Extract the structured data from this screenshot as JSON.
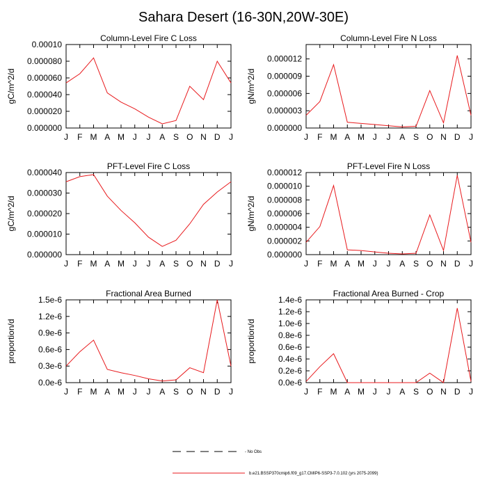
{
  "title": "Sahara Desert (16-30N,20W-30E)",
  "month_labels": [
    "J",
    "F",
    "M",
    "A",
    "M",
    "J",
    "J",
    "A",
    "S",
    "O",
    "N",
    "D",
    "J"
  ],
  "line_color": "#e8191c",
  "legend": {
    "obs_label": "- No Obs",
    "model_label": "b.e21.BSSP370cmip6.f09_g17.CMIP6-SSP3-7.0.102 (yrs 2075-2099)"
  },
  "chart_data": [
    {
      "type": "line",
      "title": "Column-Level Fire C Loss",
      "ylabel": "gC/m^2/d",
      "ylim": [
        0,
        0.0001
      ],
      "yticks": [
        0,
        2e-05,
        4e-05,
        6e-05,
        8e-05,
        0.0001
      ],
      "ytick_labels": [
        "0.000000",
        "0.000020",
        "0.000040",
        "0.000060",
        "0.000080",
        "0.00010"
      ],
      "categories": [
        "J",
        "F",
        "M",
        "A",
        "M",
        "J",
        "J",
        "A",
        "S",
        "O",
        "N",
        "D",
        "J"
      ],
      "values": [
        5.4e-05,
        6.5e-05,
        8.4e-05,
        4.2e-05,
        3.1e-05,
        2.3e-05,
        1.3e-05,
        5e-06,
        9e-06,
        5e-05,
        3.4e-05,
        8e-05,
        5.4e-05
      ]
    },
    {
      "type": "line",
      "title": "Column-Level Fire N Loss",
      "ylabel": "gN/m^2/d",
      "ylim": [
        0,
        1.45e-05
      ],
      "yticks": [
        0,
        3e-06,
        6e-06,
        9e-06,
        1.2e-05
      ],
      "ytick_labels": [
        "0.000000",
        "0.000003",
        "0.000006",
        "0.000009",
        "0.000012"
      ],
      "categories": [
        "J",
        "F",
        "M",
        "A",
        "M",
        "J",
        "J",
        "A",
        "S",
        "O",
        "N",
        "D",
        "J"
      ],
      "values": [
        2.2e-06,
        4.6e-06,
        1.1e-05,
        1e-06,
        8e-07,
        6e-07,
        4e-07,
        2e-07,
        3e-07,
        6.5e-06,
        9e-07,
        1.26e-05,
        2.2e-06
      ]
    },
    {
      "type": "line",
      "title": "PFT-Level Fire C Loss",
      "ylabel": "gC/m^2/d",
      "ylim": [
        0,
        4e-05
      ],
      "yticks": [
        0,
        1e-05,
        2e-05,
        3e-05,
        4e-05
      ],
      "ytick_labels": [
        "0.000000",
        "0.000010",
        "0.000020",
        "0.000030",
        "0.000040"
      ],
      "categories": [
        "J",
        "F",
        "M",
        "A",
        "M",
        "J",
        "J",
        "A",
        "S",
        "O",
        "N",
        "D",
        "J"
      ],
      "values": [
        3.55e-05,
        3.8e-05,
        3.9e-05,
        2.85e-05,
        2.15e-05,
        1.55e-05,
        8.5e-06,
        4e-06,
        7e-06,
        1.5e-05,
        2.45e-05,
        3.05e-05,
        3.55e-05
      ]
    },
    {
      "type": "line",
      "title": "PFT-Level Fire N Loss",
      "ylabel": "gN/m^2/d",
      "ylim": [
        0,
        1.2e-05
      ],
      "yticks": [
        0,
        2e-06,
        4e-06,
        6e-06,
        8e-06,
        1e-05,
        1.2e-05
      ],
      "ytick_labels": [
        "0.000000",
        "0.000002",
        "0.000004",
        "0.000006",
        "0.000008",
        "0.000010",
        "0.000012"
      ],
      "categories": [
        "J",
        "F",
        "M",
        "A",
        "M",
        "J",
        "J",
        "A",
        "S",
        "O",
        "N",
        "D",
        "J"
      ],
      "values": [
        1.8e-06,
        4.1e-06,
        1.01e-05,
        7e-07,
        6e-07,
        4e-07,
        2e-07,
        1e-07,
        2e-07,
        5.8e-06,
        6e-07,
        1.16e-05,
        1.8e-06
      ]
    },
    {
      "type": "line",
      "title": "Fractional Area Burned",
      "ylabel": "proportion/d",
      "ylim": [
        0,
        1.5e-06
      ],
      "yticks": [
        0,
        3e-07,
        6e-07,
        9e-07,
        1.2e-06,
        1.5e-06
      ],
      "ytick_labels": [
        "0.0e-6",
        "0.3e-6",
        "0.6e-6",
        "0.9e-6",
        "1.2e-6",
        "1.5e-6"
      ],
      "categories": [
        "J",
        "F",
        "M",
        "A",
        "M",
        "J",
        "J",
        "A",
        "S",
        "O",
        "N",
        "D",
        "J"
      ],
      "values": [
        3e-07,
        5.6e-07,
        7.7e-07,
        2.4e-07,
        1.8e-07,
        1.3e-07,
        7e-08,
        3e-08,
        5e-08,
        2.7e-07,
        1.8e-07,
        1.5e-06,
        3e-07
      ]
    },
    {
      "type": "line",
      "title": "Fractional Area Burned - Crop",
      "ylabel": "proportion/d",
      "ylim": [
        0,
        1.4e-06
      ],
      "yticks": [
        0,
        2e-07,
        4e-07,
        6e-07,
        8e-07,
        1e-06,
        1.2e-06,
        1.4e-06
      ],
      "ytick_labels": [
        "0.0e-6",
        "0.2e-6",
        "0.4e-6",
        "0.6e-6",
        "0.8e-6",
        "1.0e-6",
        "1.2e-6",
        "1.4e-6"
      ],
      "categories": [
        "J",
        "F",
        "M",
        "A",
        "M",
        "J",
        "J",
        "A",
        "S",
        "O",
        "N",
        "D",
        "J"
      ],
      "values": [
        2e-08,
        2.7e-07,
        4.9e-07,
        0,
        0,
        0,
        0,
        0,
        0,
        1.6e-07,
        0,
        1.26e-06,
        2e-08
      ]
    }
  ]
}
